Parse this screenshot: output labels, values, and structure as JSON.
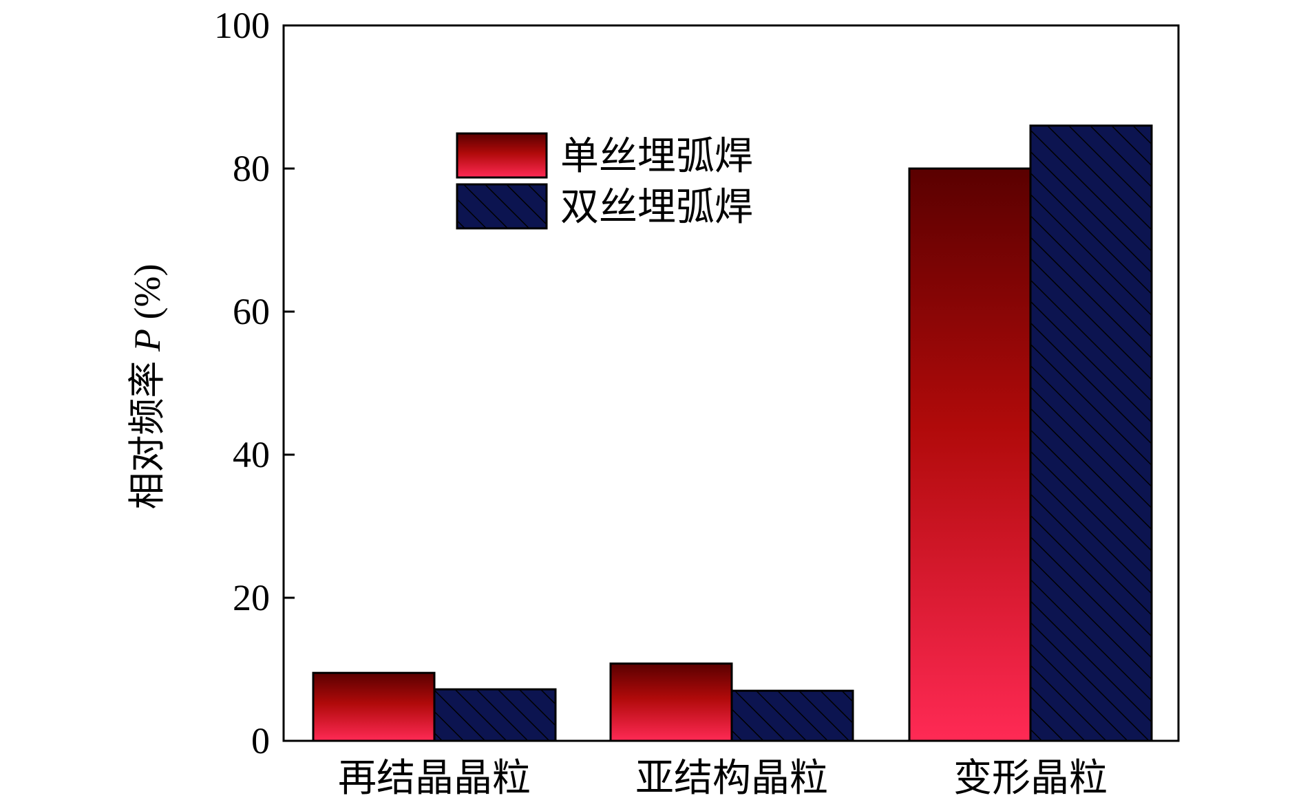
{
  "chart_data": {
    "type": "bar",
    "categories": [
      "再结晶晶粒",
      "亚结构晶粒",
      "变形晶粒"
    ],
    "series": [
      {
        "name": "单丝埋弧焊",
        "values": [
          9.5,
          10.8,
          80.0
        ],
        "style": "gradient",
        "color_top": "#5a0000",
        "color_mid": "#b00a0a",
        "color_bottom": "#ff2a55"
      },
      {
        "name": "双丝埋弧焊",
        "values": [
          7.2,
          7.0,
          86.0
        ],
        "style": "hatched",
        "color": "#0c1450"
      }
    ],
    "ylabel_text": "相对频率 ",
    "ylabel_var": "P",
    "ylabel_unit": " (%)",
    "xlabel": "",
    "ylim": [
      0,
      100
    ],
    "yticks": [
      "0",
      "20",
      "40",
      "60",
      "80",
      "100"
    ],
    "legend_position": "top-center",
    "grid": false
  }
}
